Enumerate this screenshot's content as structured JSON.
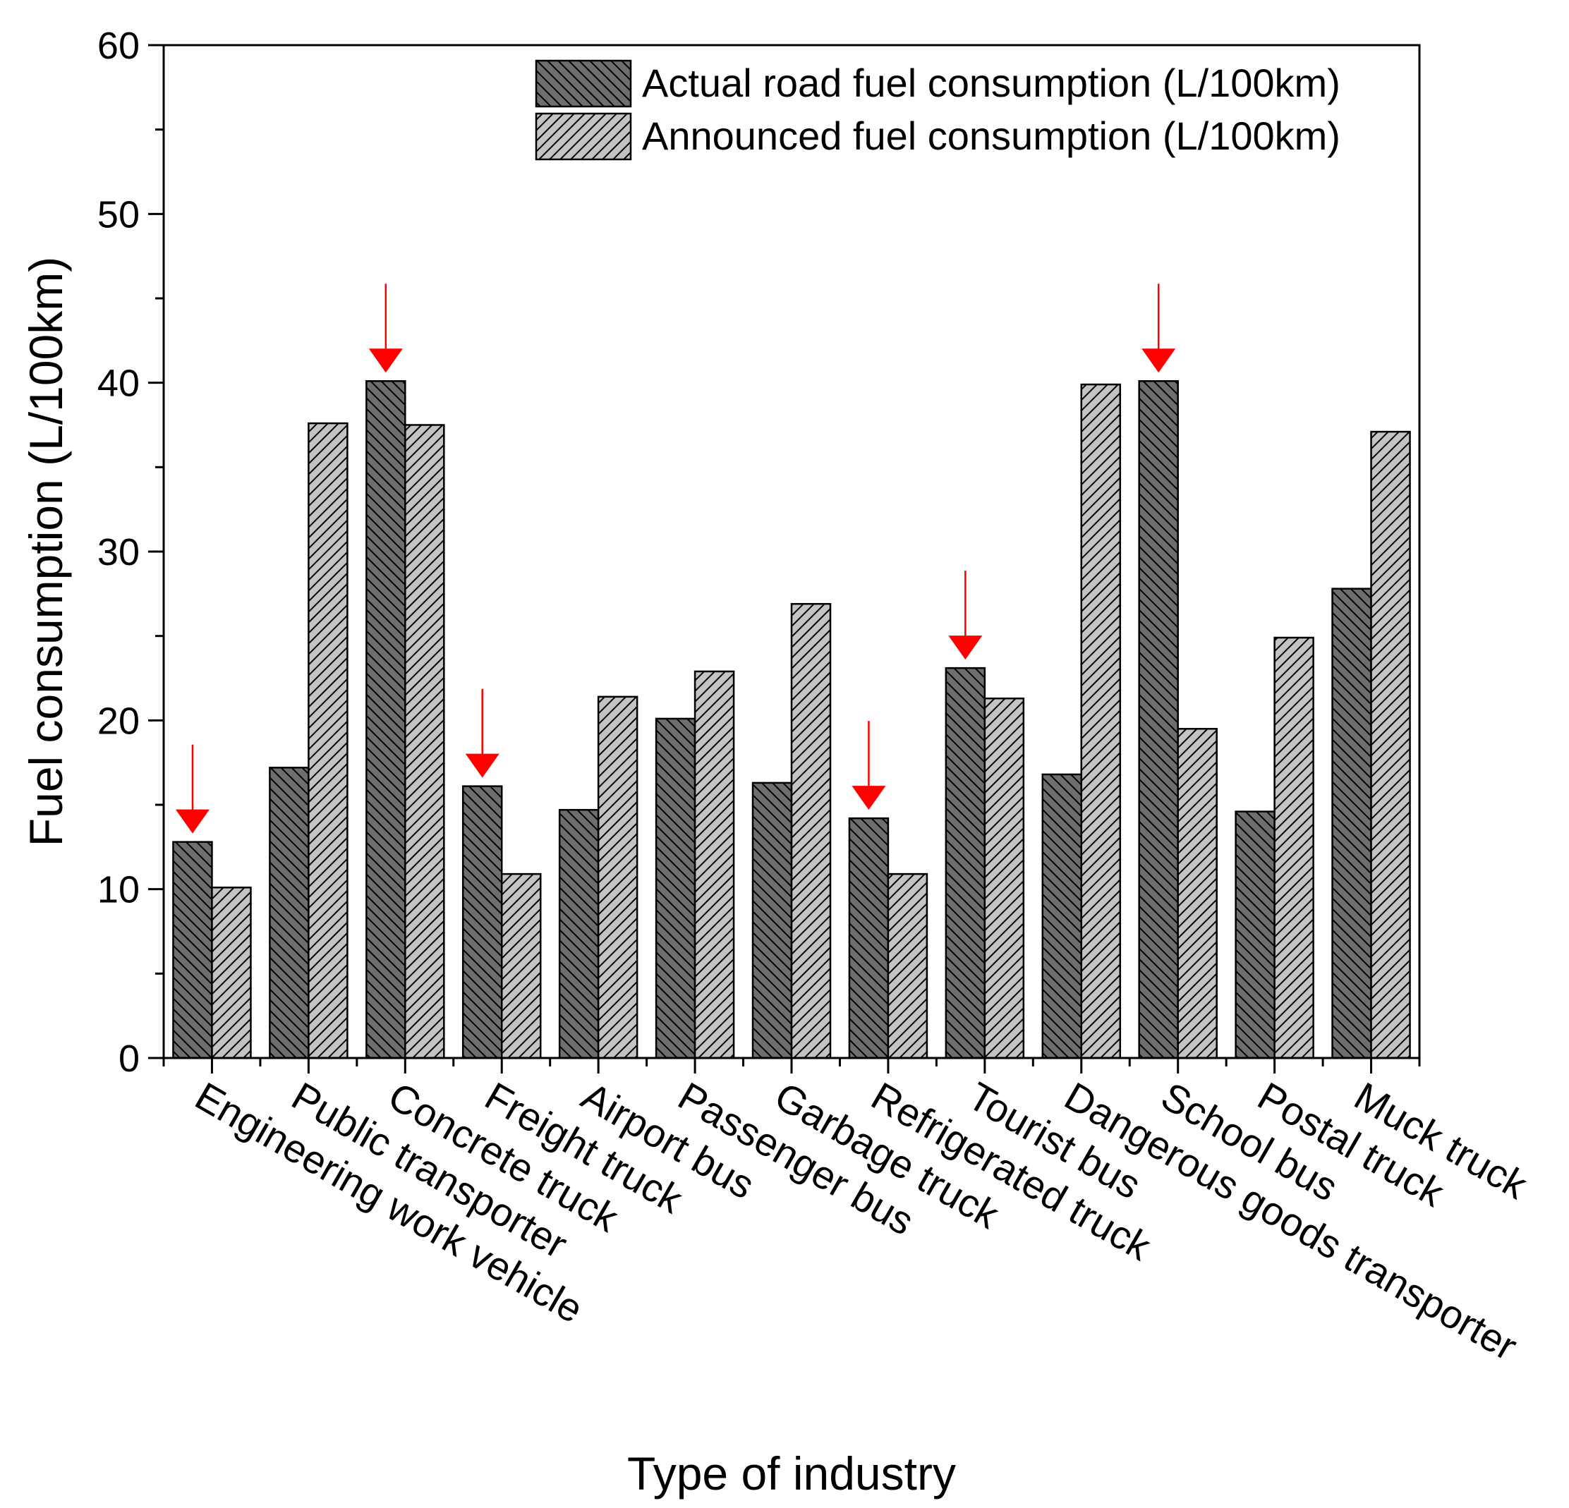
{
  "chart_data": {
    "type": "bar",
    "title": "",
    "xlabel": "Type of industry",
    "ylabel": "Fuel consumption (L/100km)",
    "ylim": [
      0,
      60
    ],
    "yticks": [
      0,
      10,
      20,
      30,
      40,
      50,
      60
    ],
    "grid": false,
    "legend_position": "top-right",
    "categories": [
      "Engineering work vehicle",
      "Public transporter",
      "Concrete truck",
      "Freight truck",
      "Airport bus",
      "Passenger bus",
      "Garbage truck",
      "Refrigerated truck",
      "Tourist bus",
      "Dangerous goods transporter",
      "School bus",
      "Postal truck",
      "Muck truck"
    ],
    "series": [
      {
        "name": "Actual road fuel consumption (L/100km)",
        "color": "#6e6e6e",
        "hatch": "backslash",
        "values": [
          12.8,
          17.2,
          40.1,
          16.1,
          14.7,
          20.1,
          16.3,
          14.2,
          23.1,
          16.8,
          40.1,
          14.6,
          27.8
        ]
      },
      {
        "name": "Announced fuel consumption (L/100km)",
        "color": "#c3c3c3",
        "hatch": "slash",
        "values": [
          10.1,
          37.6,
          37.5,
          10.9,
          21.4,
          22.9,
          26.9,
          10.9,
          21.3,
          39.9,
          19.5,
          24.9,
          37.1
        ]
      }
    ],
    "annotations": {
      "type": "arrow",
      "color": "#ff0000",
      "description": "red down arrows marking categories where actual exceeds announced",
      "categories": [
        "Engineering work vehicle",
        "Concrete truck",
        "Freight truck",
        "Refrigerated truck",
        "Tourist bus",
        "School bus"
      ]
    }
  }
}
